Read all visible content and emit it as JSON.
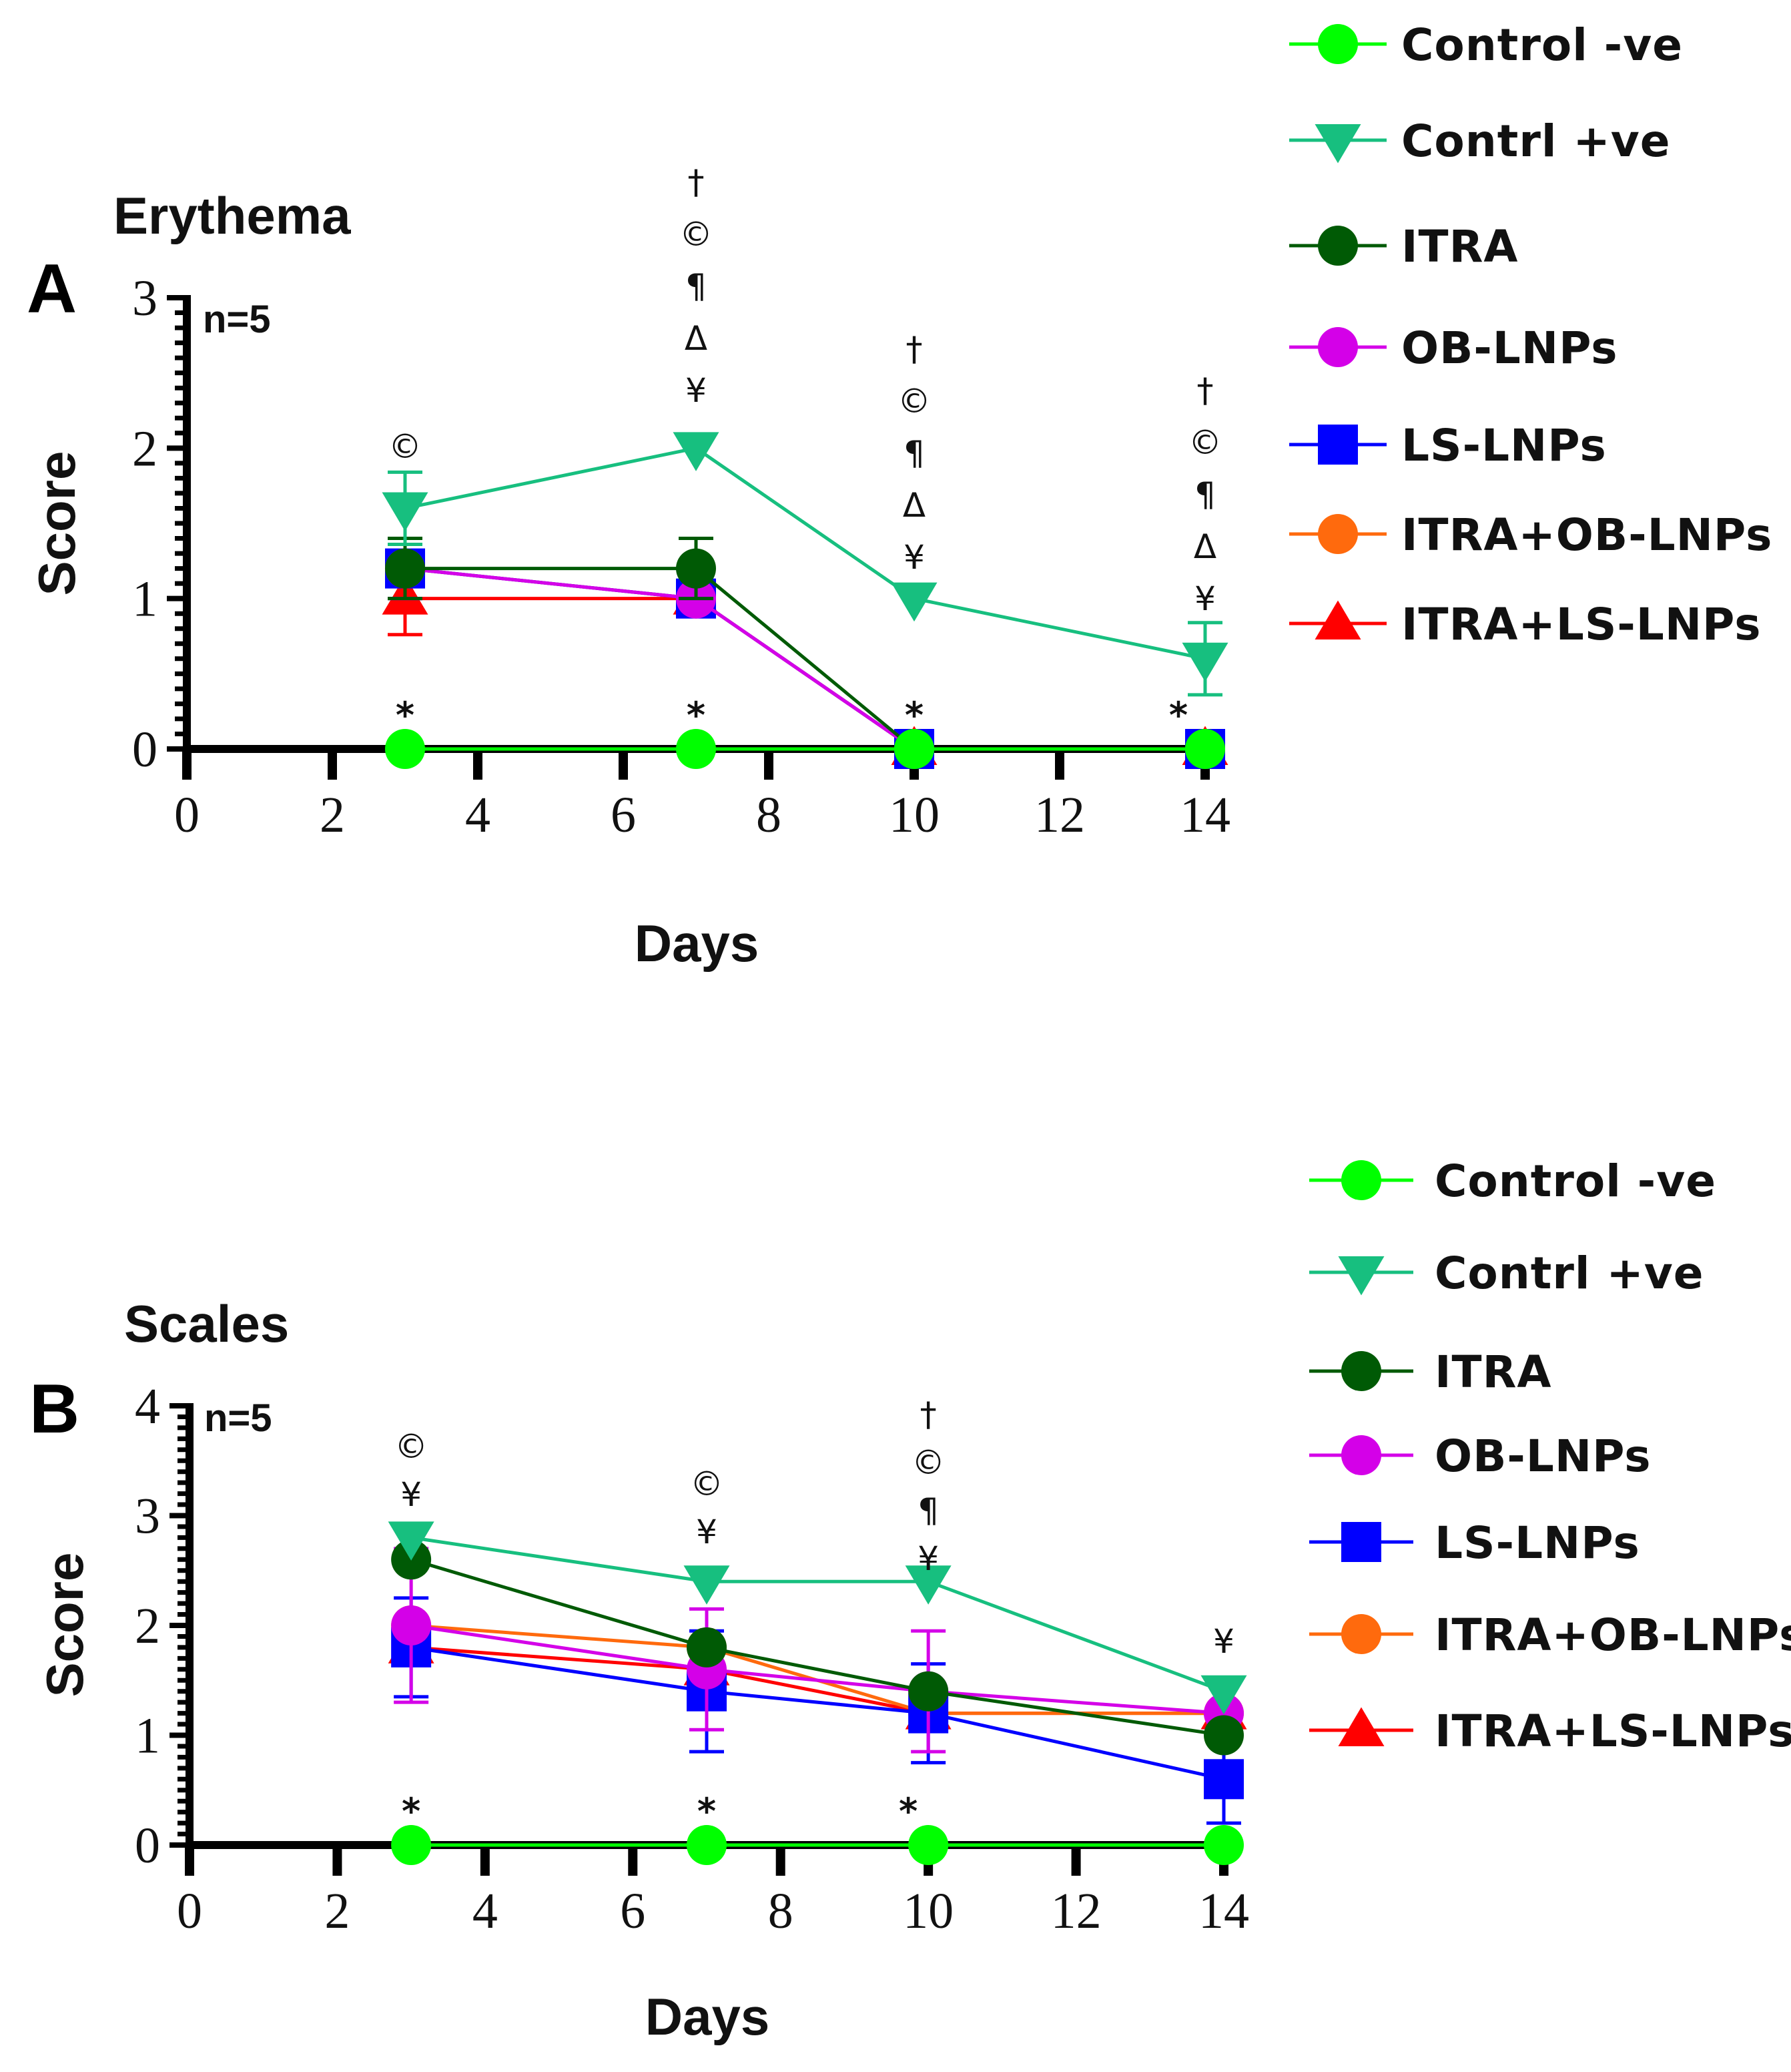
{
  "chart_data": [
    {
      "type": "line",
      "panel_label": "A",
      "title": "Erythema",
      "n_label": "n=5",
      "xlabel": "Days",
      "ylabel": "Score",
      "xlim": [
        0,
        14
      ],
      "ylim": [
        0,
        3
      ],
      "xticks": [
        0,
        2,
        4,
        6,
        8,
        10,
        12,
        14
      ],
      "yticks": [
        0,
        1,
        2,
        3
      ],
      "x": [
        3,
        7,
        10,
        14
      ],
      "series": [
        {
          "name": "Control -ve",
          "color": "#00ff00",
          "marker": "circle",
          "values": [
            0,
            0,
            0,
            0
          ],
          "errors": [
            0,
            0,
            0,
            0
          ]
        },
        {
          "name": "Contrl +ve",
          "color": "#17bf7f",
          "marker": "triangle-down",
          "values": [
            1.6,
            2.0,
            1.0,
            0.6
          ],
          "errors": [
            0.24,
            0,
            0,
            0.24
          ]
        },
        {
          "name": "ITRA",
          "color": "#005a05",
          "marker": "circle",
          "values": [
            1.2,
            1.2,
            0,
            0
          ],
          "errors": [
            0.2,
            0.2,
            0,
            0
          ]
        },
        {
          "name": "OB-LNPs",
          "color": "#d400e8",
          "marker": "circle",
          "values": [
            1.2,
            1.0,
            0,
            0
          ],
          "errors": [
            0.2,
            0,
            0,
            0
          ]
        },
        {
          "name": "LS-LNPs",
          "color": "#0000ff",
          "marker": "square",
          "values": [
            1.2,
            1.0,
            0,
            0
          ],
          "errors": [
            0.2,
            0,
            0,
            0
          ]
        },
        {
          "name": "ITRA+OB-LNPs",
          "color": "#ff6a0d",
          "marker": "circle",
          "values": [
            1.2,
            1.0,
            0,
            0
          ],
          "errors": [
            0.2,
            0,
            0,
            0
          ]
        },
        {
          "name": "ITRA+LS-LNPs",
          "color": "#ff0000",
          "marker": "triangle-up",
          "values": [
            1.0,
            1.0,
            0,
            0
          ],
          "errors": [
            0.24,
            0,
            0,
            0
          ]
        }
      ],
      "annotations": [
        {
          "x": 3,
          "symbols": [
            "©"
          ]
        },
        {
          "x": 7,
          "symbols": [
            "†",
            "©",
            "¶",
            "Δ",
            "¥"
          ]
        },
        {
          "x": 10,
          "symbols": [
            "†",
            "©",
            "¶",
            "Δ",
            "¥"
          ]
        },
        {
          "x": 14,
          "symbols": [
            "†",
            "©",
            "¶",
            "Δ",
            "¥"
          ]
        }
      ],
      "significance_markers": [
        {
          "x": 3,
          "text": "*"
        },
        {
          "x": 7,
          "text": "*"
        },
        {
          "x": 10,
          "text": "*"
        },
        {
          "x": 14,
          "text": "*"
        }
      ]
    },
    {
      "type": "line",
      "panel_label": "B",
      "title": "Scales",
      "n_label": "n=5",
      "xlabel": "Days",
      "ylabel": "Score",
      "xlim": [
        0,
        14
      ],
      "ylim": [
        0,
        4
      ],
      "xticks": [
        0,
        2,
        4,
        6,
        8,
        10,
        12,
        14
      ],
      "yticks": [
        0,
        1,
        2,
        3,
        4
      ],
      "x": [
        3,
        7,
        10,
        14
      ],
      "series": [
        {
          "name": "Control -ve",
          "color": "#00ff00",
          "marker": "circle",
          "values": [
            0,
            0,
            0,
            0
          ],
          "errors": [
            0,
            0,
            0,
            0
          ]
        },
        {
          "name": "Contrl +ve",
          "color": "#17bf7f",
          "marker": "triangle-down",
          "values": [
            2.8,
            2.4,
            2.4,
            1.4
          ],
          "errors": [
            0,
            0,
            0,
            0
          ]
        },
        {
          "name": "ITRA",
          "color": "#005a05",
          "marker": "circle",
          "values": [
            2.6,
            1.8,
            1.4,
            1.0
          ],
          "errors": [
            0,
            0,
            0,
            0
          ]
        },
        {
          "name": "OB-LNPs",
          "color": "#d400e8",
          "marker": "circle",
          "values": [
            2.0,
            1.6,
            1.4,
            1.2
          ],
          "errors": [
            0.7,
            0.55,
            0.55,
            0
          ]
        },
        {
          "name": "LS-LNPs",
          "color": "#0000ff",
          "marker": "square",
          "values": [
            1.8,
            1.4,
            1.2,
            0.6
          ],
          "errors": [
            0.45,
            0.55,
            0.45,
            0.4
          ]
        },
        {
          "name": "ITRA+OB-LNPs",
          "color": "#ff6a0d",
          "marker": "circle",
          "values": [
            2.0,
            1.8,
            1.2,
            1.2
          ],
          "errors": [
            0,
            0,
            0,
            0
          ]
        },
        {
          "name": "ITRA+LS-LNPs",
          "color": "#ff0000",
          "marker": "triangle-up",
          "values": [
            1.8,
            1.6,
            1.2,
            1.2
          ],
          "errors": [
            0,
            0,
            0,
            0
          ]
        }
      ],
      "annotations": [
        {
          "x": 3,
          "symbols": [
            "©",
            "¥"
          ]
        },
        {
          "x": 7,
          "symbols": [
            "©",
            "¥"
          ]
        },
        {
          "x": 10,
          "symbols": [
            "†",
            "©",
            "¶",
            "¥"
          ]
        },
        {
          "x": 14,
          "symbols": [
            "¥"
          ]
        }
      ],
      "significance_markers": [
        {
          "x": 3,
          "text": "*"
        },
        {
          "x": 7,
          "text": "*"
        },
        {
          "x": 10,
          "text": "*"
        }
      ]
    }
  ]
}
